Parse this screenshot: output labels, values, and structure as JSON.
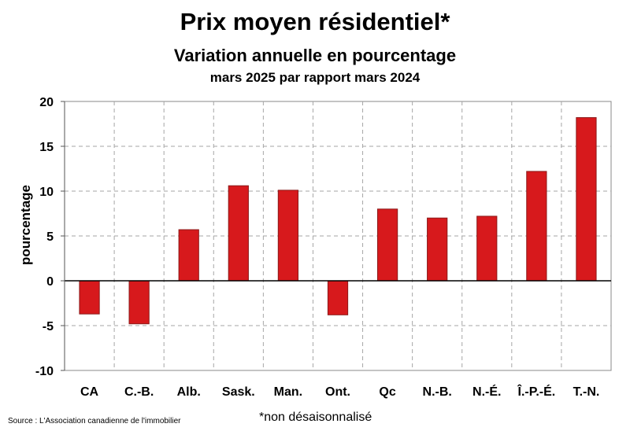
{
  "chart_data": {
    "type": "bar",
    "title": "Prix moyen résidentiel*",
    "subtitle": "Variation annuelle en pourcentage",
    "subtitle2": "mars 2025 par rapport mars 2024",
    "ylabel": "pourcentage",
    "xlabel": "",
    "categories": [
      "CA",
      "C.-B.",
      "Alb.",
      "Sask.",
      "Man.",
      "Ont.",
      "Qc",
      "N.-B.",
      "N.-É.",
      "Î.-P.-É.",
      "T.-N."
    ],
    "values": [
      -3.7,
      -4.8,
      5.7,
      10.6,
      10.1,
      -3.8,
      8.0,
      7.0,
      7.2,
      12.2,
      18.2
    ],
    "ylim": [
      -10,
      20
    ],
    "yticks": [
      -10,
      -5,
      0,
      5,
      10,
      15,
      20
    ],
    "grid": true,
    "bar_color": "#d7191c",
    "bar_outline": "#8b1a1a"
  },
  "footer": {
    "source": "Source : L'Association canadienne de l'immobilier",
    "note": "*non désaisonnalisé"
  }
}
